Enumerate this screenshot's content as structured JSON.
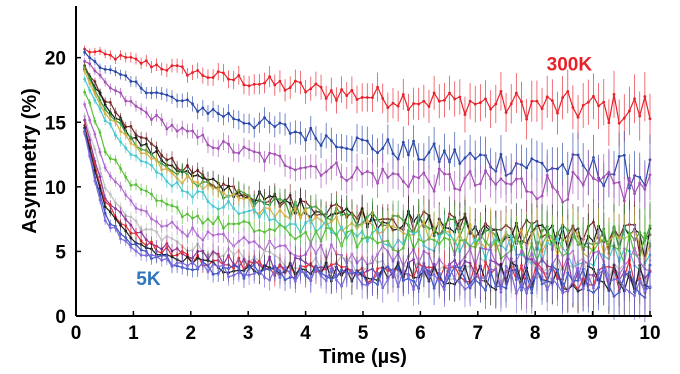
{
  "chart_data": {
    "type": "line",
    "title": "",
    "xlabel": "Time (µs)",
    "ylabel": "Asymmetry (%)",
    "xlim": [
      0,
      10
    ],
    "ylim": [
      0,
      24
    ],
    "xticks": [
      "0",
      "1",
      "2",
      "3",
      "4",
      "5",
      "6",
      "7",
      "8",
      "9",
      "10"
    ],
    "yticks": [
      "0",
      "5",
      "10",
      "15",
      "20"
    ],
    "grid": false,
    "legend": "none",
    "annotations": [
      {
        "text": "300K",
        "x": 8.2,
        "y": 19.0,
        "color": "#e8202a"
      },
      {
        "text": "5K",
        "x": 1.05,
        "y": 2.4,
        "color": "#2f76c0"
      }
    ],
    "series": [
      {
        "color": "#e8202a",
        "x": [
          0.15,
          0.5,
          1,
          1.5,
          2,
          2.5,
          3,
          3.5,
          4,
          4.5,
          5,
          5.5,
          6,
          6.5,
          7,
          7.5,
          8,
          8.5,
          9,
          9.5,
          10
        ],
        "y": [
          20.6,
          20.2,
          19.8,
          19.3,
          18.9,
          18.5,
          18.2,
          17.9,
          17.6,
          17.3,
          17.1,
          16.9,
          16.8,
          16.6,
          16.5,
          16.4,
          16.3,
          16.2,
          16.1,
          16.0,
          16.0
        ]
      },
      {
        "color": "#2a48a8",
        "x": [
          0.15,
          0.5,
          1,
          1.5,
          2,
          2.5,
          3,
          3.5,
          4,
          4.5,
          5,
          5.5,
          6,
          6.5,
          7,
          7.5,
          8,
          8.5,
          9,
          9.5,
          10
        ],
        "y": [
          20.3,
          19.2,
          18.0,
          17.1,
          16.3,
          15.7,
          15.1,
          14.6,
          14.1,
          13.7,
          13.3,
          12.9,
          12.6,
          12.3,
          12.1,
          11.9,
          11.7,
          11.5,
          11.3,
          11.2,
          11.0
        ]
      },
      {
        "color": "#a34fb4",
        "x": [
          0.15,
          0.5,
          1,
          1.5,
          2,
          2.5,
          3,
          3.5,
          4,
          4.5,
          5,
          5.5,
          6,
          6.5,
          7,
          7.5,
          8,
          8.5,
          9,
          9.5,
          10
        ],
        "y": [
          19.8,
          18.0,
          16.3,
          15.0,
          14.0,
          13.2,
          12.6,
          12.1,
          11.7,
          11.3,
          11.0,
          10.8,
          10.6,
          10.4,
          10.3,
          10.2,
          10.1,
          10.0,
          9.9,
          9.9,
          9.8
        ]
      },
      {
        "color": "#7a2a2a",
        "x": [
          0.15,
          0.5,
          1,
          1.5,
          2,
          2.5,
          3,
          3.5,
          4,
          4.5,
          5,
          5.5,
          6,
          6.5,
          7,
          7.5,
          8,
          8.5,
          9,
          9.5,
          10
        ],
        "y": [
          19.4,
          16.8,
          14.2,
          12.5,
          11.2,
          10.2,
          9.5,
          9.0,
          8.6,
          8.2,
          7.9,
          7.6,
          7.3,
          7.1,
          6.9,
          6.7,
          6.5,
          6.3,
          6.1,
          5.9,
          5.7
        ]
      },
      {
        "color": "#1a1a1a",
        "x": [
          0.15,
          0.5,
          1,
          1.5,
          2,
          2.5,
          3,
          3.5,
          4,
          4.5,
          5,
          5.5,
          6,
          6.5,
          7,
          7.5,
          8,
          8.5,
          9,
          9.5,
          10
        ],
        "y": [
          19.2,
          16.5,
          13.8,
          12.1,
          10.9,
          10.0,
          9.3,
          8.8,
          8.4,
          8.0,
          7.7,
          7.4,
          7.1,
          6.9,
          6.7,
          6.5,
          6.3,
          6.1,
          6.0,
          5.8,
          5.7
        ]
      },
      {
        "color": "#3a9a3a",
        "x": [
          0.15,
          0.5,
          1,
          1.5,
          2,
          2.5,
          3,
          3.5,
          4,
          4.5,
          5,
          5.5,
          6,
          6.5,
          7,
          7.5,
          8,
          8.5,
          9,
          9.5,
          10
        ],
        "y": [
          19.0,
          16.2,
          13.5,
          11.8,
          10.6,
          9.7,
          9.0,
          8.5,
          8.1,
          7.7,
          7.4,
          7.1,
          6.9,
          6.7,
          6.5,
          6.3,
          6.2,
          6.0,
          5.9,
          5.8,
          5.7
        ]
      },
      {
        "color": "#d8b04a",
        "x": [
          0.15,
          0.5,
          1,
          1.5,
          2,
          2.5,
          3,
          3.5,
          4,
          4.5,
          5,
          5.5,
          6,
          6.5,
          7,
          7.5,
          8,
          8.5,
          9,
          9.5,
          10
        ],
        "y": [
          18.8,
          15.9,
          13.2,
          11.5,
          10.3,
          9.4,
          8.7,
          8.2,
          7.8,
          7.4,
          7.1,
          6.8,
          6.6,
          6.4,
          6.2,
          6.1,
          5.9,
          5.8,
          5.7,
          5.6,
          5.5
        ]
      },
      {
        "color": "#4ac8d0",
        "x": [
          0.15,
          0.5,
          1,
          1.5,
          2,
          2.5,
          3,
          3.5,
          4,
          4.5,
          5,
          5.5,
          6,
          6.5,
          7,
          7.5,
          8,
          8.5,
          9,
          9.5,
          10
        ],
        "y": [
          18.5,
          15.3,
          12.5,
          10.8,
          9.6,
          8.7,
          8.0,
          7.4,
          7.0,
          6.6,
          6.3,
          6.0,
          5.8,
          5.6,
          5.4,
          5.3,
          5.1,
          5.0,
          4.9,
          4.8,
          4.7
        ]
      },
      {
        "color": "#5abf3a",
        "x": [
          0.15,
          0.5,
          1,
          1.5,
          2,
          2.5,
          3,
          3.5,
          4,
          4.5,
          5,
          5.5,
          6,
          6.5,
          7,
          7.5,
          8,
          8.5,
          9,
          9.5,
          10
        ],
        "y": [
          17.5,
          13.0,
          10.0,
          8.6,
          7.8,
          7.2,
          6.8,
          6.5,
          6.3,
          6.1,
          5.9,
          5.8,
          5.7,
          5.6,
          5.5,
          5.4,
          5.4,
          5.3,
          5.3,
          5.2,
          5.2
        ]
      },
      {
        "color": "#b06ad0",
        "x": [
          0.15,
          0.5,
          1,
          1.5,
          2,
          2.5,
          3,
          3.5,
          4,
          4.5,
          5,
          5.5,
          6,
          6.5,
          7,
          7.5,
          8,
          8.5,
          9,
          9.5,
          10
        ],
        "y": [
          16.5,
          11.5,
          8.5,
          7.2,
          6.5,
          6.0,
          5.6,
          5.3,
          5.1,
          4.9,
          4.7,
          4.6,
          4.5,
          4.4,
          4.3,
          4.2,
          4.2,
          4.1,
          4.1,
          4.0,
          4.0
        ]
      },
      {
        "color": "#c0c0c0",
        "x": [
          0.15,
          0.5,
          1,
          1.5,
          2,
          2.5,
          3,
          3.5,
          4,
          4.5,
          5,
          5.5,
          6,
          6.5,
          7,
          7.5,
          8,
          8.5,
          9,
          9.5,
          10
        ],
        "y": [
          15.5,
          10.0,
          7.2,
          6.0,
          5.3,
          4.9,
          4.6,
          4.4,
          4.2,
          4.0,
          3.9,
          3.8,
          3.7,
          3.6,
          3.6,
          3.5,
          3.5,
          3.4,
          3.4,
          3.3,
          3.3
        ]
      },
      {
        "color": "#8a3aa0",
        "x": [
          0.15,
          0.5,
          1,
          1.5,
          2,
          2.5,
          3,
          3.5,
          4,
          4.5,
          5,
          5.5,
          6,
          6.5,
          7,
          7.5,
          8,
          8.5,
          9,
          9.5,
          10
        ],
        "y": [
          15.0,
          9.3,
          6.6,
          5.5,
          4.9,
          4.5,
          4.2,
          4.0,
          3.9,
          3.8,
          3.7,
          3.6,
          3.5,
          3.5,
          3.4,
          3.4,
          3.3,
          3.3,
          3.3,
          3.2,
          3.2
        ]
      },
      {
        "color": "#e8303a",
        "x": [
          0.15,
          0.5,
          1,
          1.5,
          2,
          2.5,
          3,
          3.5,
          4,
          4.5,
          5,
          5.5,
          6,
          6.5,
          7,
          7.5,
          8,
          8.5,
          9,
          9.5,
          10
        ],
        "y": [
          14.8,
          8.8,
          6.2,
          5.1,
          4.5,
          4.1,
          3.9,
          3.7,
          3.6,
          3.5,
          3.4,
          3.3,
          3.3,
          3.2,
          3.2,
          3.1,
          3.1,
          3.1,
          3.0,
          3.0,
          3.0
        ]
      },
      {
        "color": "#222222",
        "x": [
          0.15,
          0.5,
          1,
          1.5,
          2,
          2.5,
          3,
          3.5,
          4,
          4.5,
          5,
          5.5,
          6,
          6.5,
          7,
          7.5,
          8,
          8.5,
          9,
          9.5,
          10
        ],
        "y": [
          14.5,
          8.3,
          5.8,
          4.7,
          4.2,
          3.9,
          3.7,
          3.6,
          3.5,
          3.4,
          3.3,
          3.3,
          3.2,
          3.2,
          3.1,
          3.1,
          3.0,
          3.0,
          3.0,
          2.9,
          2.9
        ]
      },
      {
        "color": "#3a55c0",
        "x": [
          0.15,
          0.5,
          1,
          1.5,
          2,
          2.5,
          3,
          3.5,
          4,
          4.5,
          5,
          5.5,
          6,
          6.5,
          7,
          7.5,
          8,
          8.5,
          9,
          9.5,
          10
        ],
        "y": [
          14.2,
          7.8,
          5.4,
          4.4,
          3.9,
          3.6,
          3.4,
          3.3,
          3.2,
          3.1,
          3.1,
          3.0,
          3.0,
          2.9,
          2.9,
          2.9,
          2.8,
          2.8,
          2.8,
          2.8,
          2.8
        ]
      },
      {
        "color": "#7b6ad8",
        "x": [
          0.15,
          0.5,
          1,
          1.5,
          2,
          2.5,
          3,
          3.5,
          4,
          4.5,
          5,
          5.5,
          6,
          6.5,
          7,
          7.5,
          8,
          8.5,
          9,
          9.5,
          10
        ],
        "y": [
          14.0,
          7.5,
          5.2,
          4.2,
          3.8,
          3.5,
          3.3,
          3.2,
          3.1,
          3.0,
          3.0,
          2.9,
          2.9,
          2.9,
          2.8,
          2.8,
          2.8,
          2.8,
          2.7,
          2.7,
          2.7
        ]
      }
    ]
  }
}
